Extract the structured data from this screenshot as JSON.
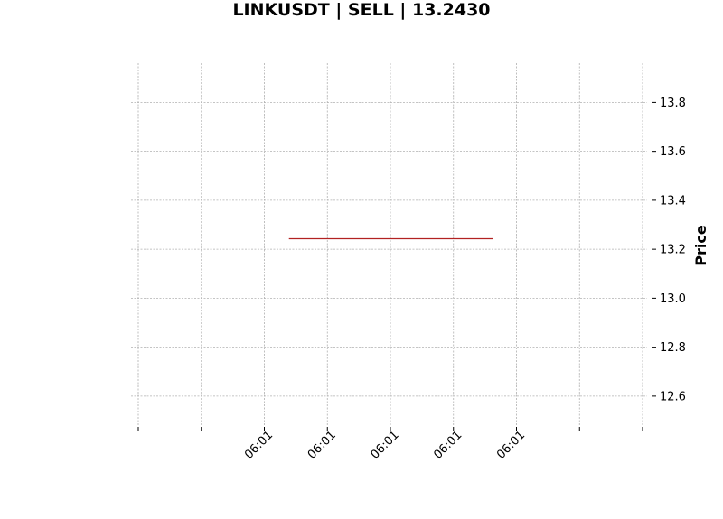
{
  "chart_data": {
    "type": "line",
    "title": "LINKUSDT | SELL | 13.2430",
    "ylabel": "Price",
    "xlabel": "",
    "ylim": [
      12.5,
      13.96
    ],
    "yticks": [
      12.6,
      12.8,
      13.0,
      13.2,
      13.4,
      13.6,
      13.8
    ],
    "ytick_labels": [
      "12.6",
      "12.8",
      "13.0",
      "13.2",
      "13.4",
      "13.6",
      "13.8"
    ],
    "xlim": [
      0,
      8
    ],
    "xticks": [
      0,
      1,
      2,
      3,
      4,
      5,
      6,
      7,
      8
    ],
    "xtick_labels": [
      "",
      "",
      "06:01",
      "06:01",
      "06:01",
      "06:01",
      "06:01",
      "",
      ""
    ],
    "grid": true,
    "series": [
      {
        "x": [
          2.39,
          5.62
        ],
        "y": [
          13.243,
          13.243
        ],
        "color": "#b22222"
      }
    ]
  }
}
